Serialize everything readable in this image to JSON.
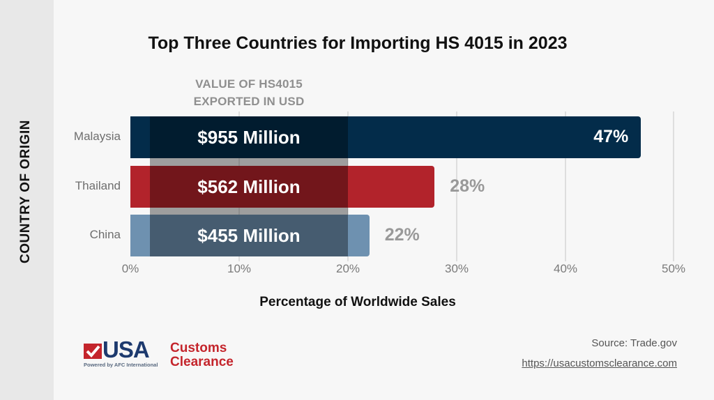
{
  "chart_data": {
    "type": "bar",
    "orientation": "horizontal",
    "title": "Top Three Countries for Importing HS 4015 in 2023",
    "xlabel": "Percentage of Worldwide Sales",
    "ylabel": "COUNTRY OF ORIGIN",
    "categories": [
      "Malaysia",
      "Thailand",
      "China"
    ],
    "values": [
      47,
      28,
      22
    ],
    "value_labels": [
      "47%",
      "28%",
      "22%"
    ],
    "secondary_labels_title": "VALUE OF HS4015 EXPORTED IN USD",
    "secondary_values": [
      "$955 Million",
      "$562 Million",
      "$455 Million"
    ],
    "secondary_values_numeric_usd_millions": [
      955,
      562,
      455
    ],
    "bar_colors": [
      "#032c4a",
      "#b2232b",
      "#6e91b0"
    ],
    "xlim": [
      0,
      50
    ],
    "x_ticks": [
      "0%",
      "10%",
      "20%",
      "30%",
      "40%",
      "50%"
    ],
    "grid": "vertical",
    "legend": "none"
  },
  "header": {
    "title": "Top Three Countries for Importing HS 4015 in 2023"
  },
  "overlay": {
    "title_line1": "VALUE OF HS4015",
    "title_line2": "EXPORTED IN USD"
  },
  "axes": {
    "y_title": "COUNTRY OF ORIGIN",
    "x_title": "Percentage of Worldwide Sales",
    "ticks": [
      "0%",
      "10%",
      "20%",
      "30%",
      "40%",
      "50%"
    ]
  },
  "rows": [
    {
      "country": "Malaysia",
      "value": "$955 Million",
      "pct": "47%",
      "pct_num": 47,
      "color": "#032c4a",
      "pct_color": "#ffffff"
    },
    {
      "country": "Thailand",
      "value": "$562 Million",
      "pct": "28%",
      "pct_num": 28,
      "color": "#b2232b",
      "pct_color": "#999999"
    },
    {
      "country": "China",
      "value": "$455 Million",
      "pct": "22%",
      "pct_num": 22,
      "color": "#6e91b0",
      "pct_color": "#999999"
    }
  ],
  "footer": {
    "logo_main": "USA",
    "logo_customs": "Customs",
    "logo_clearance": "Clearance",
    "logo_powered": "Powered by AFC International",
    "source": "Source: Trade.gov",
    "url": "https://usacustomsclearance.com"
  }
}
